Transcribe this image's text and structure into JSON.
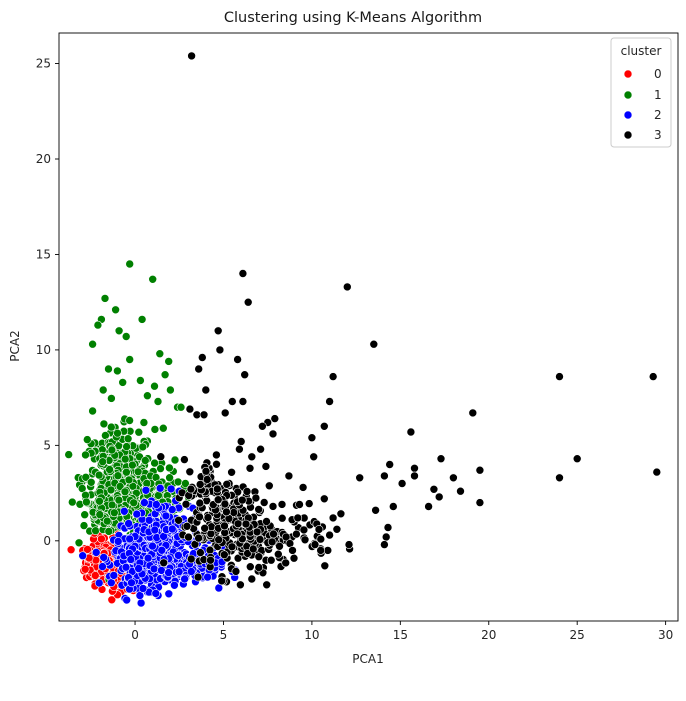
{
  "chart_data": {
    "type": "scatter",
    "title": "Clustering using K-Means Algorithm",
    "xlabel": "PCA1",
    "ylabel": "PCA2",
    "xlim": [
      -4.3,
      30.7
    ],
    "ylim": [
      -4.2,
      26.6
    ],
    "xticks": [
      0,
      5,
      10,
      15,
      20,
      25,
      30
    ],
    "yticks": [
      0,
      5,
      10,
      15,
      20,
      25
    ],
    "grid": false,
    "legend": {
      "title": "cluster",
      "placement": "top-right",
      "entries": [
        "0",
        "1",
        "2",
        "3"
      ]
    },
    "series": [
      {
        "name": "0",
        "color": "#ff0000",
        "dense_regions": [
          {
            "center": [
              -1.7,
              -1.1
            ],
            "spread": [
              0.55,
              0.55
            ],
            "count": 220
          },
          {
            "center": [
              -0.8,
              -1.9
            ],
            "spread": [
              0.5,
              0.35
            ],
            "count": 80
          }
        ],
        "points": [
          [
            -2.4,
            1.5
          ],
          [
            -2.3,
            0.4
          ],
          [
            -1.6,
            0.8
          ],
          [
            -1.1,
            0.6
          ],
          [
            -0.3,
            -0.4
          ],
          [
            -0.1,
            -2.6
          ],
          [
            -2.6,
            -0.9
          ],
          [
            -0.6,
            -0.7
          ],
          [
            -1.9,
            0.1
          ],
          [
            -1.2,
            -2.4
          ]
        ]
      },
      {
        "name": "1",
        "color": "#008000",
        "dense_regions": [
          {
            "center": [
              -0.9,
              3.2
            ],
            "spread": [
              1.0,
              1.3
            ],
            "count": 380
          },
          {
            "center": [
              0.4,
              2.2
            ],
            "spread": [
              1.1,
              0.8
            ],
            "count": 160
          },
          {
            "center": [
              -1.5,
              1.3
            ],
            "spread": [
              0.6,
              0.5
            ],
            "count": 60
          }
        ],
        "points": [
          [
            -0.3,
            14.5
          ],
          [
            1.0,
            13.7
          ],
          [
            -1.7,
            12.7
          ],
          [
            -1.1,
            12.1
          ],
          [
            -1.9,
            11.6
          ],
          [
            0.4,
            11.6
          ],
          [
            -2.1,
            11.3
          ],
          [
            -0.9,
            11.0
          ],
          [
            -0.5,
            10.7
          ],
          [
            -2.4,
            10.3
          ],
          [
            1.4,
            9.8
          ],
          [
            1.9,
            9.4
          ],
          [
            -0.3,
            9.5
          ],
          [
            -1.5,
            9.0
          ],
          [
            -1.0,
            8.9
          ],
          [
            1.7,
            8.7
          ],
          [
            0.3,
            8.4
          ],
          [
            -0.7,
            8.3
          ],
          [
            1.1,
            8.1
          ],
          [
            -1.8,
            7.9
          ],
          [
            0.7,
            7.6
          ],
          [
            2.4,
            7.0
          ],
          [
            2.6,
            7.0
          ],
          [
            2.0,
            7.9
          ],
          [
            1.3,
            7.3
          ],
          [
            -2.4,
            6.8
          ],
          [
            -2.7,
            5.3
          ],
          [
            -2.8,
            4.5
          ],
          [
            0.5,
            6.2
          ],
          [
            1.6,
            5.9
          ]
        ]
      },
      {
        "name": "2",
        "color": "#0000ff",
        "dense_regions": [
          {
            "center": [
              0.8,
              -0.9
            ],
            "spread": [
              1.0,
              0.75
            ],
            "count": 420
          },
          {
            "center": [
              1.8,
              0.4
            ],
            "spread": [
              0.8,
              0.9
            ],
            "count": 160
          },
          {
            "center": [
              3.4,
              -1.4
            ],
            "spread": [
              0.8,
              0.5
            ],
            "count": 80
          }
        ],
        "points": [
          [
            2.5,
            2.6
          ],
          [
            2.3,
            2.1
          ],
          [
            1.2,
            1.9
          ],
          [
            0.1,
            1.4
          ],
          [
            -0.2,
            -2.2
          ],
          [
            4.1,
            -1.9
          ],
          [
            3.0,
            0.8
          ],
          [
            -0.3,
            0.1
          ],
          [
            4.2,
            -1.2
          ],
          [
            2.8,
            -2.0
          ]
        ]
      },
      {
        "name": "3",
        "color": "#000000",
        "dense_regions": [
          {
            "center": [
              5.6,
              0.5
            ],
            "spread": [
              1.2,
              1.1
            ],
            "count": 200
          },
          {
            "center": [
              4.5,
              2.3
            ],
            "spread": [
              0.9,
              1.0
            ],
            "count": 90
          },
          {
            "center": [
              8.3,
              0.4
            ],
            "spread": [
              1.4,
              1.0
            ],
            "count": 70
          }
        ],
        "points": [
          [
            3.2,
            25.4
          ],
          [
            6.1,
            14.0
          ],
          [
            12.0,
            13.3
          ],
          [
            6.4,
            12.5
          ],
          [
            4.7,
            11.0
          ],
          [
            4.8,
            10.0
          ],
          [
            13.5,
            10.3
          ],
          [
            3.8,
            9.6
          ],
          [
            5.8,
            9.5
          ],
          [
            3.6,
            9.0
          ],
          [
            6.2,
            8.7
          ],
          [
            11.2,
            8.6
          ],
          [
            4.0,
            7.9
          ],
          [
            5.5,
            7.3
          ],
          [
            6.1,
            7.3
          ],
          [
            11.0,
            7.3
          ],
          [
            3.1,
            6.9
          ],
          [
            3.5,
            6.6
          ],
          [
            3.9,
            6.6
          ],
          [
            5.1,
            6.7
          ],
          [
            7.9,
            6.4
          ],
          [
            7.5,
            6.2
          ],
          [
            7.2,
            6.0
          ],
          [
            10.7,
            6.0
          ],
          [
            19.1,
            6.7
          ],
          [
            15.6,
            5.7
          ],
          [
            7.8,
            5.6
          ],
          [
            10.0,
            5.4
          ],
          [
            6.0,
            5.2
          ],
          [
            5.9,
            4.8
          ],
          [
            7.1,
            4.8
          ],
          [
            4.6,
            4.5
          ],
          [
            6.6,
            4.4
          ],
          [
            10.1,
            4.4
          ],
          [
            17.3,
            4.3
          ],
          [
            25.0,
            4.3
          ],
          [
            14.4,
            4.0
          ],
          [
            15.8,
            3.8
          ],
          [
            14.1,
            3.4
          ],
          [
            12.7,
            3.3
          ],
          [
            15.8,
            3.4
          ],
          [
            19.5,
            3.7
          ],
          [
            24.0,
            3.3
          ],
          [
            29.5,
            3.6
          ],
          [
            18.0,
            3.3
          ],
          [
            16.9,
            2.7
          ],
          [
            17.2,
            2.3
          ],
          [
            18.4,
            2.6
          ],
          [
            15.1,
            3.0
          ],
          [
            13.6,
            1.6
          ],
          [
            14.6,
            1.8
          ],
          [
            16.6,
            1.8
          ],
          [
            19.5,
            2.0
          ],
          [
            9.5,
            2.8
          ],
          [
            10.7,
            2.2
          ],
          [
            9.3,
            1.9
          ],
          [
            11.2,
            1.2
          ],
          [
            10.4,
            0.6
          ],
          [
            11.0,
            0.3
          ],
          [
            10.9,
            -0.5
          ],
          [
            12.1,
            -0.2
          ],
          [
            14.3,
            0.7
          ],
          [
            14.2,
            0.2
          ],
          [
            14.1,
            -0.2
          ],
          [
            24.0,
            8.6
          ],
          [
            29.3,
            8.6
          ],
          [
            8.7,
            3.4
          ],
          [
            9.2,
            1.2
          ],
          [
            8.9,
            -0.5
          ],
          [
            7.4,
            3.9
          ],
          [
            6.5,
            3.8
          ],
          [
            10.5,
            -0.5
          ],
          [
            8.1,
            -0.7
          ],
          [
            7.0,
            -1.4
          ],
          [
            5.7,
            -1.6
          ],
          [
            4.9,
            -2.1
          ],
          [
            6.6,
            -2.0
          ]
        ]
      }
    ]
  }
}
